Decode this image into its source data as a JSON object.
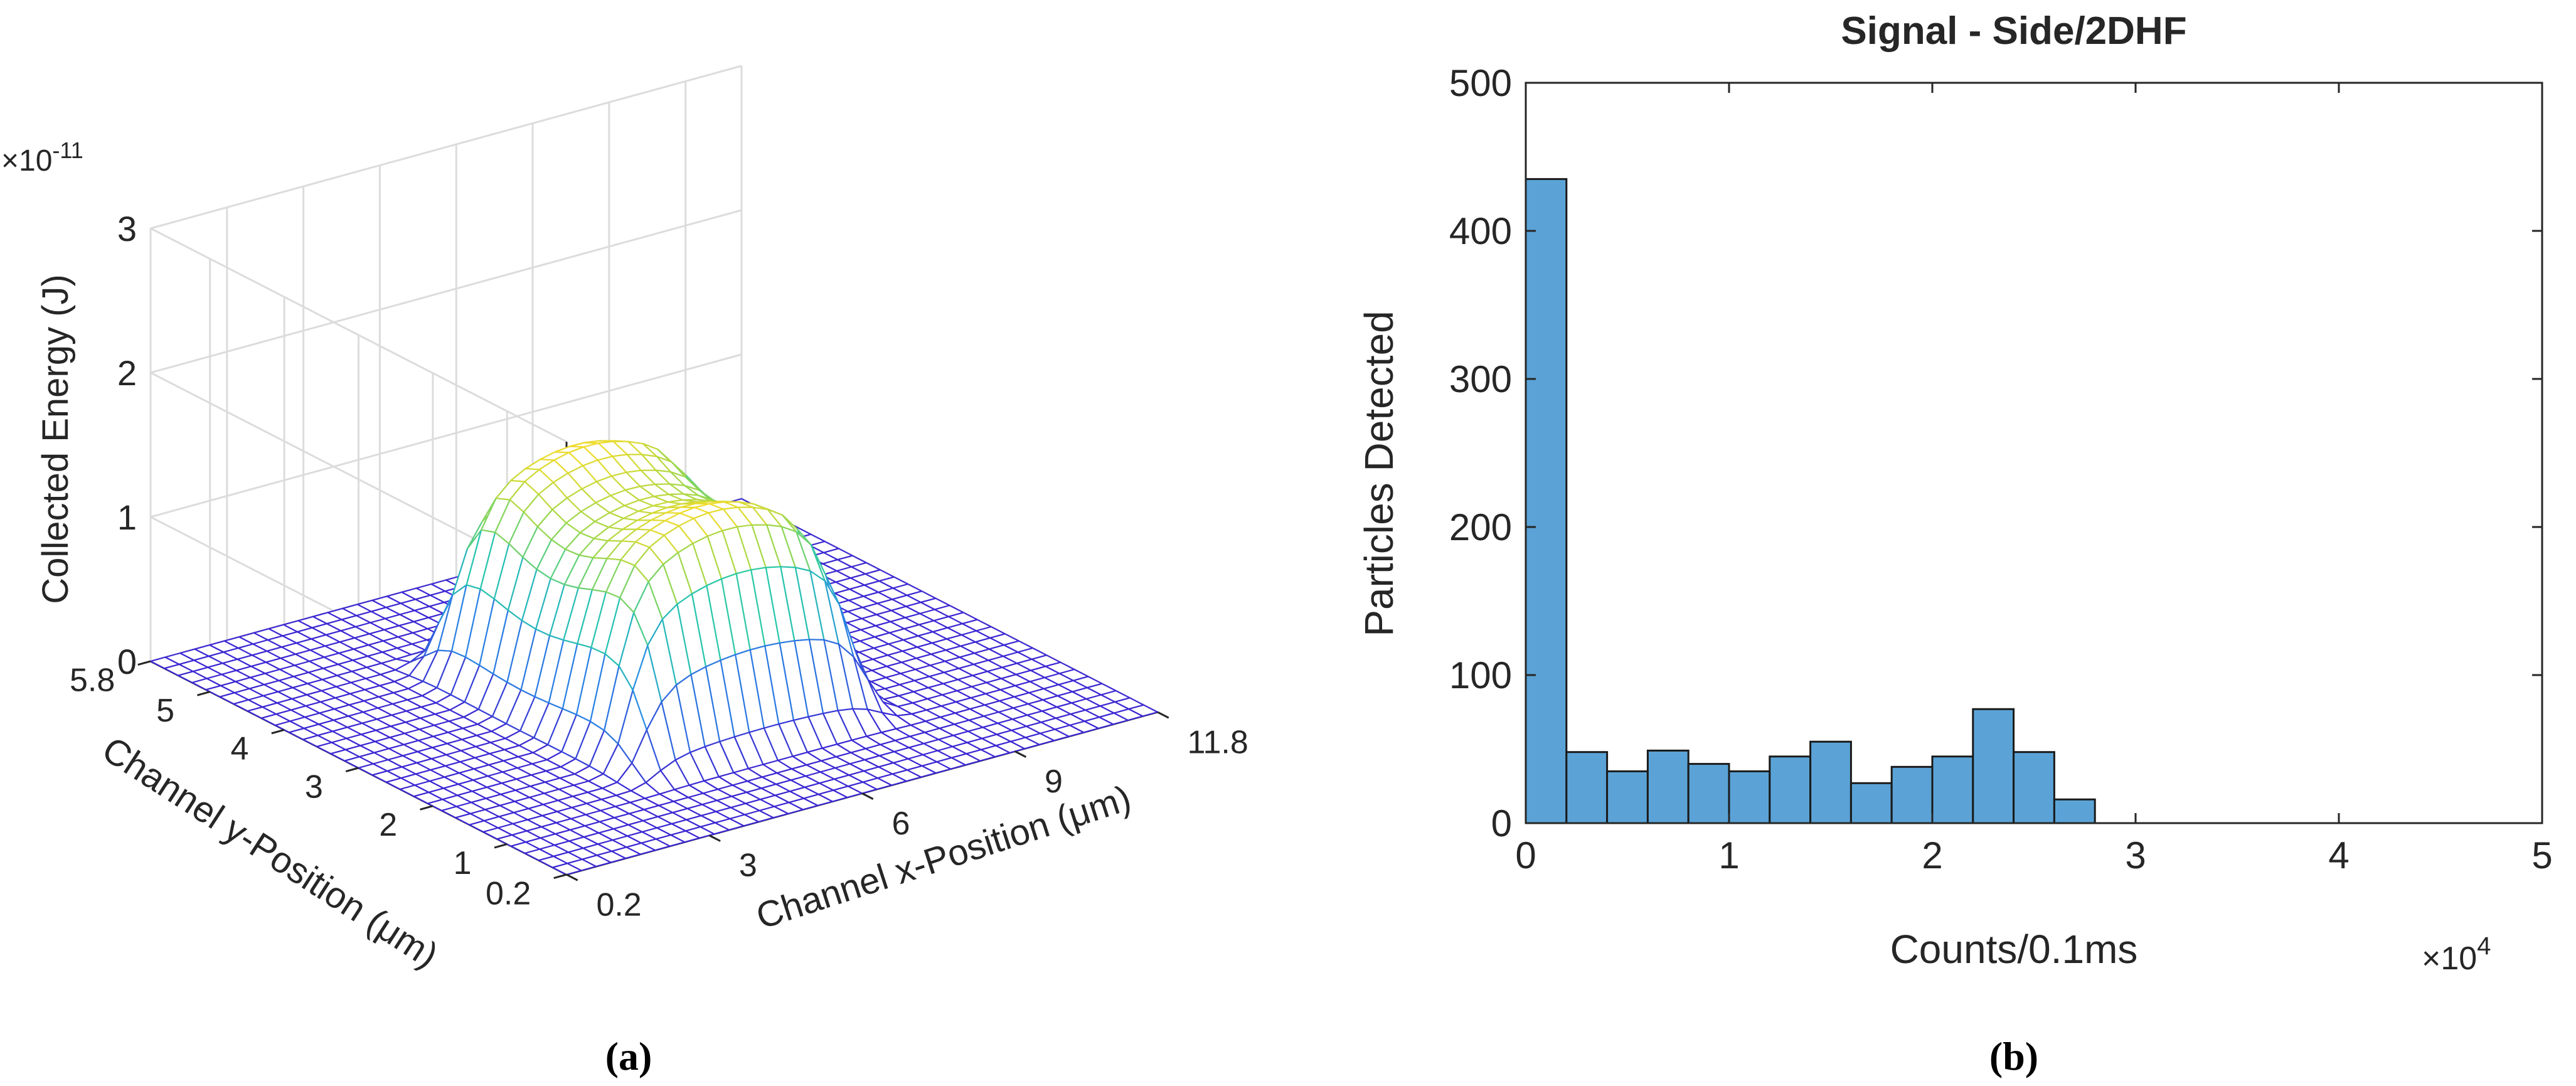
{
  "chart_data": [
    {
      "type": "surface3d",
      "panel_label": "a",
      "title": "",
      "exponent_label": "×10",
      "exponent_power": "-11",
      "zlabel": "Collected Energy (J)",
      "ylabel": "Channel y-Position (μm)",
      "xlabel": "Channel x-Position (μm)",
      "zlim": [
        0,
        3
      ],
      "z_ticks": [
        "0",
        "1",
        "2",
        "3"
      ],
      "y_ticks": [
        "5.8",
        "5",
        "4",
        "3",
        "2",
        "1",
        "0.2"
      ],
      "x_ticks": [
        "0.2",
        "3",
        "6",
        "9",
        "11.8"
      ],
      "xlim": [
        0.2,
        11.8
      ],
      "ylim": [
        0.2,
        5.8
      ],
      "peak_value": 1.5
    },
    {
      "type": "histogram",
      "panel_label": "b",
      "title": "Signal - Side/2DHF",
      "xlabel": "Counts/0.1ms",
      "ylabel": "Particles Detected",
      "x_exponent_label": "×10",
      "x_exponent_power": "4",
      "xlim": [
        0,
        5
      ],
      "ylim": [
        0,
        500
      ],
      "x_ticks": [
        "0",
        "1",
        "2",
        "3",
        "4",
        "5"
      ],
      "y_ticks": [
        "0",
        "100",
        "200",
        "300",
        "400",
        "500"
      ],
      "bin_width": 0.2,
      "bin_starts": [
        0,
        0.2,
        0.4,
        0.6,
        0.8,
        1.0,
        1.2,
        1.4,
        1.6,
        1.8,
        2.0,
        2.2,
        2.4,
        2.6,
        2.8
      ],
      "values": [
        435,
        48,
        35,
        49,
        40,
        35,
        45,
        55,
        27,
        38,
        45,
        77,
        48,
        16,
        0
      ],
      "bar_color": "#5BA3D6"
    }
  ],
  "captions": {
    "a": "(a)",
    "b": "(b)"
  }
}
